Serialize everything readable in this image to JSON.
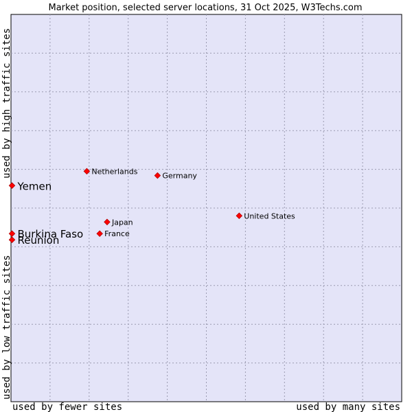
{
  "chart_data": {
    "type": "scatter",
    "title": "Market position, selected server locations, 31 Oct 2025, W3Techs.com",
    "xlabel_low": "used by fewer sites",
    "xlabel_high": "used by many sites",
    "ylabel_low": "used by low traffic sites",
    "ylabel_high": "used by high traffic sites",
    "xlim": [
      0,
      10
    ],
    "ylim": [
      0,
      10
    ],
    "grid": true,
    "point_color": "#ff0000",
    "plot_background": "#e4e4f8",
    "points": [
      {
        "label": "Netherlands",
        "x": 1.94,
        "y": 5.95,
        "highlight": false
      },
      {
        "label": "Germany",
        "x": 3.75,
        "y": 5.84,
        "highlight": false
      },
      {
        "label": "United States",
        "x": 5.84,
        "y": 4.8,
        "highlight": false
      },
      {
        "label": "Japan",
        "x": 2.46,
        "y": 4.64,
        "highlight": false
      },
      {
        "label": "France",
        "x": 2.27,
        "y": 4.34,
        "highlight": false
      },
      {
        "label": "Yemen",
        "x": 0.0,
        "y": 5.58,
        "highlight": true
      },
      {
        "label": "Burkina Faso",
        "x": 0.0,
        "y": 4.34,
        "highlight": true
      },
      {
        "label": "Reunion",
        "x": 0.0,
        "y": 4.18,
        "highlight": true
      }
    ]
  }
}
